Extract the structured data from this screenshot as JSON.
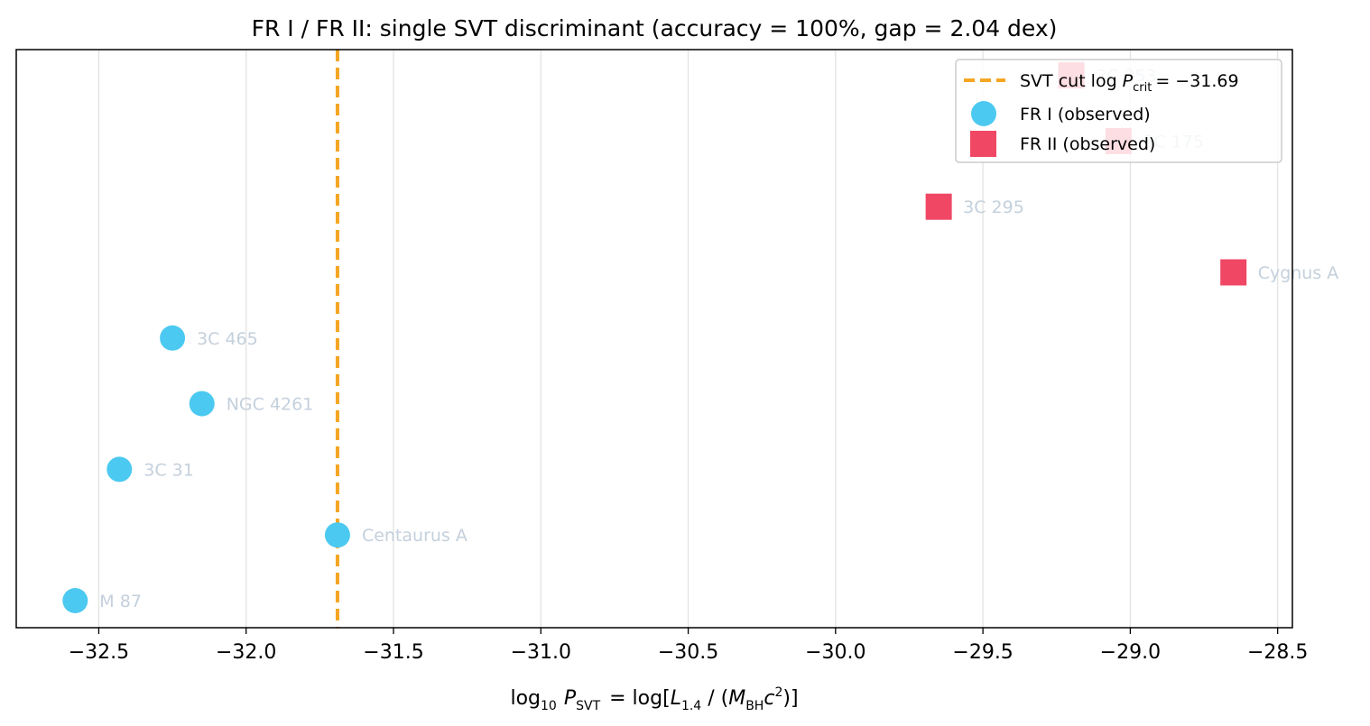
{
  "chart_data": {
    "type": "scatter",
    "title": "FR I / FR II: single SVT discriminant (accuracy = 100%, gap = 2.04 dex)",
    "xlabel": {
      "prefix": "log",
      "prefix_sub": "10",
      "var": "P",
      "var_sub": "SVT",
      "eq": "= log",
      "lbracket": "[",
      "L": "L",
      "L_sub": "1.4",
      "slash": " / (",
      "M": "M",
      "M_sub": "BH",
      "c": "c",
      "c_sup": "2",
      "close": ")",
      "rbracket": "]"
    },
    "xlim": [
      -32.78,
      -28.45
    ],
    "xticks": [
      -32.5,
      -32.0,
      -31.5,
      -31.0,
      -30.5,
      -30.0,
      -29.5,
      -29.0,
      -28.5
    ],
    "xtick_labels": [
      "−32.5",
      "−32.0",
      "−31.5",
      "−31.0",
      "−30.5",
      "−30.0",
      "−29.5",
      "−29.0",
      "−28.5"
    ],
    "grid": "vertical",
    "cut": {
      "value": -31.69,
      "legend_prefix": "SVT cut log",
      "legend_var": "P",
      "legend_sub": "crit",
      "legend_value": "= −31.69",
      "color": "#f5a623"
    },
    "series": [
      {
        "name": "FR I (observed)",
        "marker": "circle",
        "color": "#4cc9f0",
        "points": [
          {
            "label": "M 87",
            "x": -32.58,
            "row": 0
          },
          {
            "label": "Centaurus A",
            "x": -31.69,
            "row": 1
          },
          {
            "label": "3C 31",
            "x": -32.43,
            "row": 2
          },
          {
            "label": "NGC 4261",
            "x": -32.15,
            "row": 3
          },
          {
            "label": "3C 465",
            "x": -32.25,
            "row": 4
          }
        ]
      },
      {
        "name": "FR II (observed)",
        "marker": "square",
        "color": "#ef4764",
        "points": [
          {
            "label": "Cygnus A",
            "x": -28.65,
            "row": 5
          },
          {
            "label": "3C 295",
            "x": -29.65,
            "row": 6
          },
          {
            "label": "3C 175",
            "x": -29.04,
            "row": 7
          },
          {
            "label": "3C 353",
            "x": -29.2,
            "row": 8
          }
        ]
      }
    ],
    "legend_position": "top-right"
  }
}
